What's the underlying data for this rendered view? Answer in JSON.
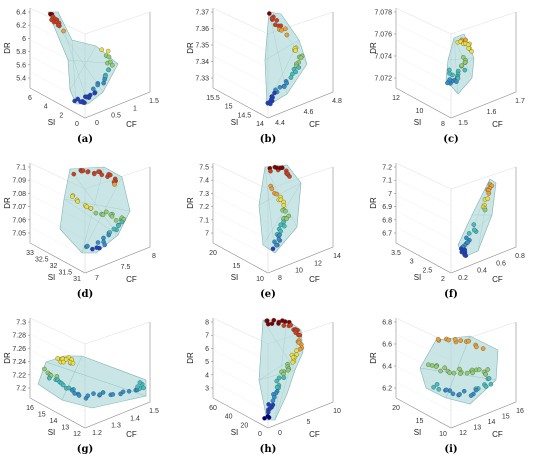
{
  "figure": {
    "colors": {
      "hull_fill": "#9fd0cf",
      "hull_stroke": "#7fb4b2",
      "axis": "#8a8a8a",
      "text": "#222222"
    },
    "colormap": [
      "#00007f",
      "#1f3fbf",
      "#2f8fcf",
      "#3fbfbf",
      "#8fcf6f",
      "#efdf3f",
      "#ef9f2f",
      "#cf3f1f",
      "#7f0000"
    ]
  },
  "chart_data": [
    {
      "id": "a",
      "caption": "(a)",
      "type": "scatter",
      "projection": "3d-convex-hull",
      "xlabel": "CF",
      "ylabel": "SI",
      "zlabel": "DR",
      "zticks": [
        "5.4",
        "5.6",
        "5.8",
        "6",
        "6.2",
        "6.4"
      ],
      "si_ticks": [
        "6",
        "4",
        "2",
        "0"
      ],
      "cf_ticks": [
        "0",
        "0.5",
        "1",
        "1.5"
      ],
      "zlim": [
        5.2,
        6.5
      ]
    },
    {
      "id": "b",
      "caption": "(b)",
      "type": "scatter",
      "projection": "3d-convex-hull",
      "xlabel": "CF",
      "ylabel": "SI",
      "zlabel": "DR",
      "zticks": [
        "7.33",
        "7.34",
        "7.35",
        "7.36",
        "7.37"
      ],
      "si_ticks": [
        "15.5",
        "15",
        "14.5",
        "14"
      ],
      "cf_ticks": [
        "4.4",
        "4.6",
        "4.8"
      ],
      "zlim": [
        7.325,
        7.375
      ]
    },
    {
      "id": "c",
      "caption": "(c)",
      "type": "scatter",
      "projection": "3d-convex-hull",
      "xlabel": "CF",
      "ylabel": "SI",
      "zlabel": "DR",
      "zticks": [
        "7.072",
        "7.074",
        "7.076",
        "7.078"
      ],
      "si_ticks": [
        "12",
        "10",
        "8"
      ],
      "cf_ticks": [
        "1.5",
        "1.6",
        "1.7"
      ],
      "zlim": [
        7.071,
        7.0785
      ]
    },
    {
      "id": "d",
      "caption": "(d)",
      "type": "scatter",
      "projection": "3d-convex-hull",
      "xlabel": "CF",
      "ylabel": "SI",
      "zlabel": "DR",
      "zticks": [
        "7.05",
        "7.06",
        "7.07",
        "7.08",
        "7.09",
        "7.1"
      ],
      "si_ticks": [
        "33",
        "32.5",
        "32",
        "31.5",
        "31"
      ],
      "cf_ticks": [
        "7",
        "7.5",
        "8"
      ],
      "zlim": [
        7.045,
        7.105
      ]
    },
    {
      "id": "e",
      "caption": "(e)",
      "type": "scatter",
      "projection": "3d-convex-hull",
      "xlabel": "CF",
      "ylabel": "SI",
      "zlabel": "DR",
      "zticks": [
        "7",
        "7.1",
        "7.2",
        "7.3",
        "7.4",
        "7.5"
      ],
      "si_ticks": [
        "20",
        "15",
        "10"
      ],
      "cf_ticks": [
        "8",
        "10",
        "12",
        "14"
      ],
      "zlim": [
        6.98,
        7.5
      ]
    },
    {
      "id": "f",
      "caption": "(f)",
      "type": "scatter",
      "projection": "3d-convex-hull",
      "xlabel": "CF",
      "ylabel": "SI",
      "zlabel": "DR",
      "zticks": [
        "6.7",
        "6.8",
        "6.9",
        "7",
        "7.1",
        "7.2"
      ],
      "si_ticks": [
        "3.5",
        "3",
        "2.5",
        "2"
      ],
      "cf_ticks": [
        "0.2",
        "0.4",
        "0.6",
        "0.8"
      ],
      "zlim": [
        6.68,
        7.22
      ]
    },
    {
      "id": "g",
      "caption": "(g)",
      "type": "scatter",
      "projection": "3d-convex-hull",
      "xlabel": "CF",
      "ylabel": "SI",
      "zlabel": "DR",
      "zticks": [
        "7.2",
        "7.22",
        "7.24",
        "7.26",
        "7.28",
        "7.3"
      ],
      "si_ticks": [
        "16",
        "15",
        "14",
        "13",
        "12"
      ],
      "cf_ticks": [
        "1.2",
        "1.3",
        "1.4",
        "1.5"
      ],
      "zlim": [
        7.19,
        7.31
      ]
    },
    {
      "id": "h",
      "caption": "(h)",
      "type": "scatter",
      "projection": "3d-convex-hull",
      "xlabel": "CF",
      "ylabel": "SI",
      "zlabel": "DR",
      "zticks": [
        "3",
        "4",
        "5",
        "6",
        "7",
        "8"
      ],
      "si_ticks": [
        "60",
        "40",
        "20",
        "0"
      ],
      "cf_ticks": [
        "0",
        "5",
        "10"
      ],
      "zlim": [
        2.6,
        8.3
      ]
    },
    {
      "id": "i",
      "caption": "(i)",
      "type": "scatter",
      "projection": "3d-convex-hull",
      "xlabel": "CF",
      "ylabel": "SI",
      "zlabel": "DR",
      "zticks": [
        "6.2",
        "6.4",
        "6.6",
        "6.8"
      ],
      "si_ticks": [
        "20",
        "15",
        "10"
      ],
      "cf_ticks": [
        "12",
        "13",
        "14",
        "15",
        "16"
      ],
      "zlim": [
        6.15,
        6.88
      ]
    }
  ]
}
